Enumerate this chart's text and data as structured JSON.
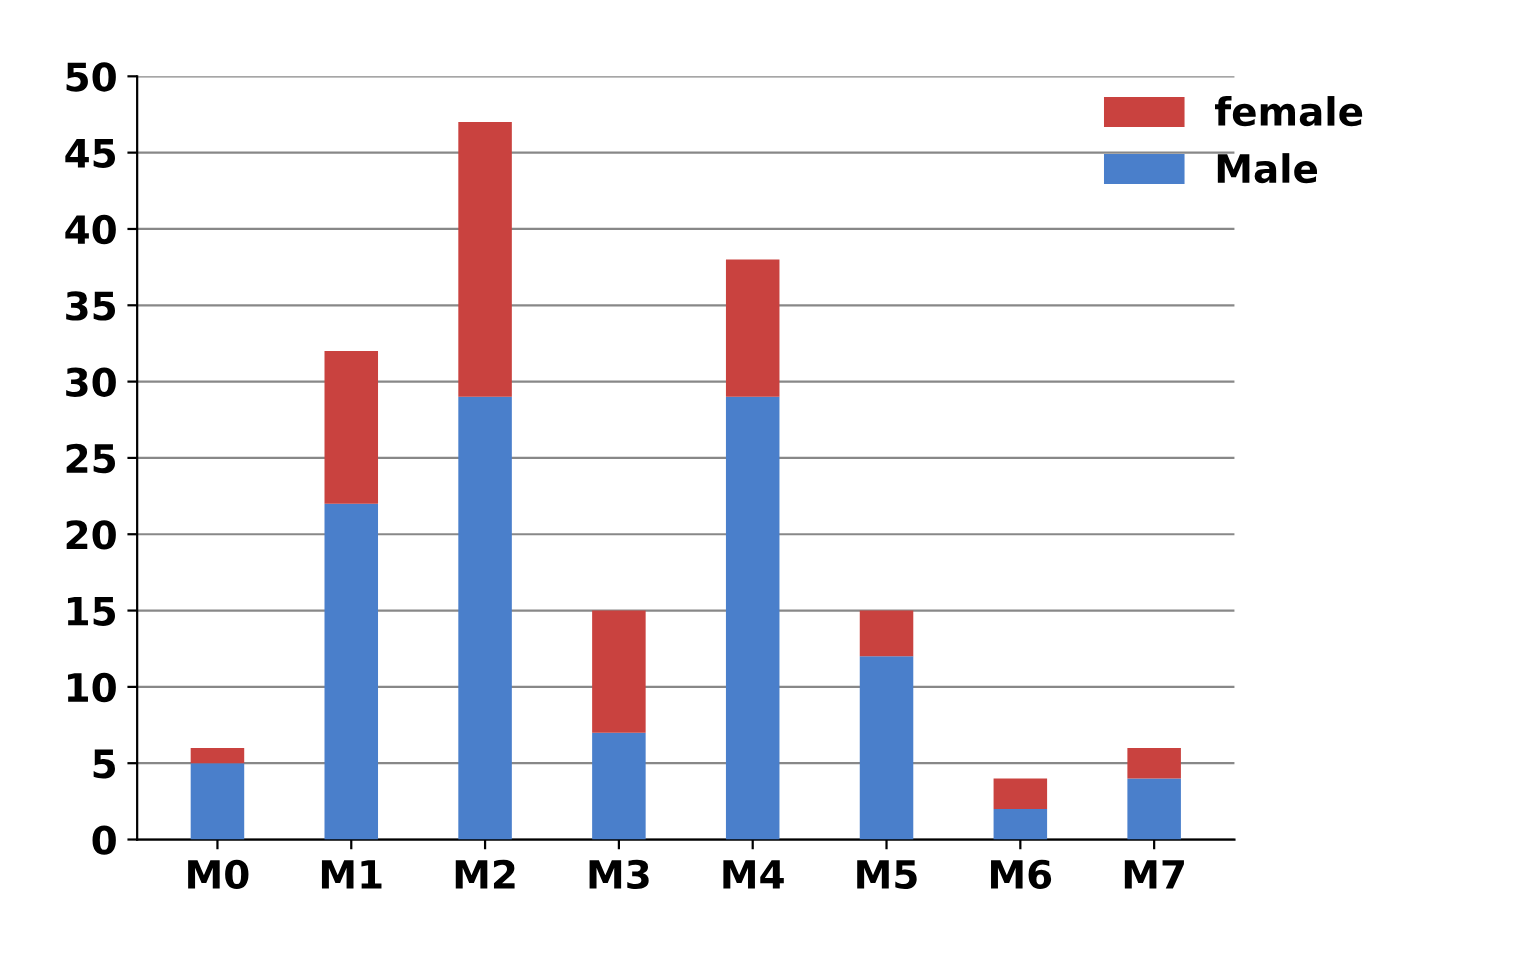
{
  "chart_data": {
    "type": "bar",
    "stacked": true,
    "categories": [
      "M0",
      "M1",
      "M2",
      "M3",
      "M4",
      "M5",
      "M6",
      "M7"
    ],
    "series": [
      {
        "name": "Male",
        "color": "#4a7fcb",
        "values": [
          5,
          22,
          29,
          7,
          29,
          12,
          2,
          4
        ]
      },
      {
        "name": "female",
        "color": "#c9423f",
        "values": [
          1,
          10,
          18,
          8,
          9,
          3,
          2,
          2
        ]
      }
    ],
    "ylim": [
      0,
      50
    ],
    "yticks": [
      0,
      5,
      10,
      15,
      20,
      25,
      30,
      35,
      40,
      45,
      50
    ],
    "grid": "y",
    "legend": "top right"
  }
}
